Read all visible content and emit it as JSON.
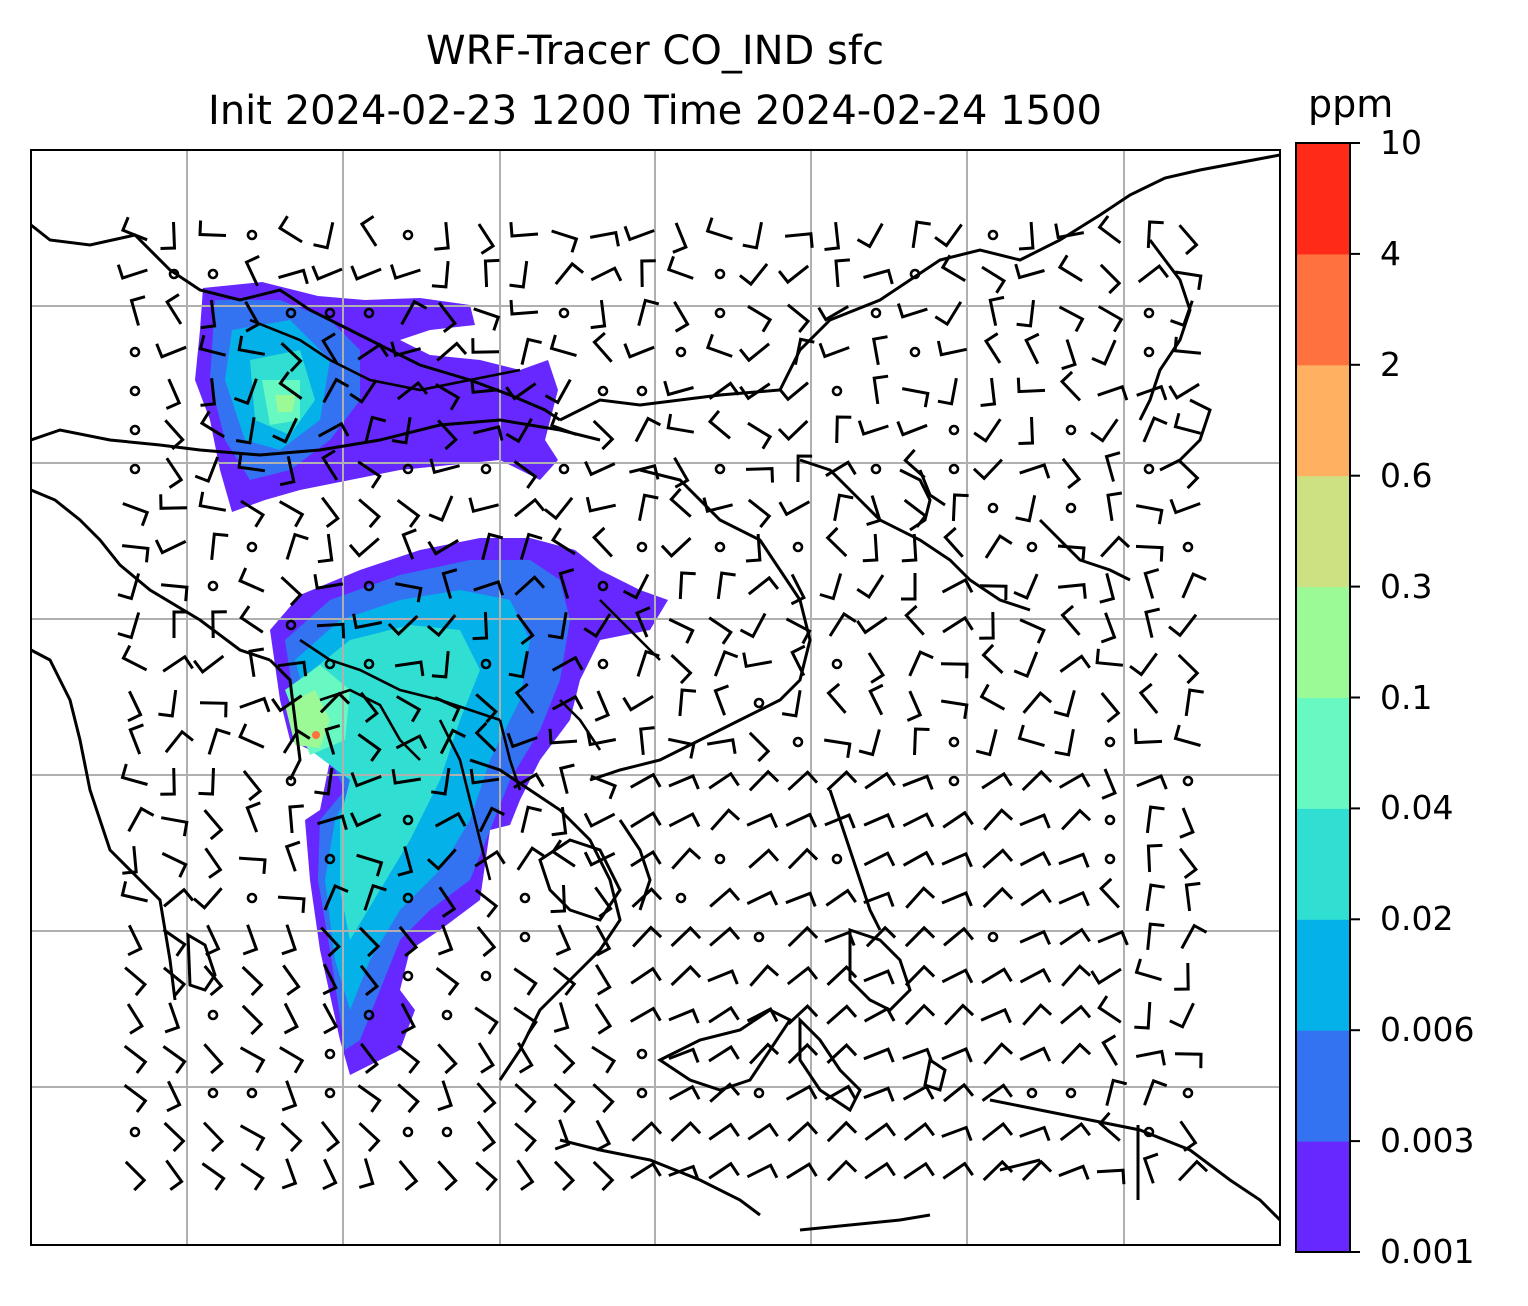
{
  "title": {
    "line1": "WRF-Tracer CO_IND sfc",
    "line2": "Init 2024-02-23 1200 Time 2024-02-24 1500"
  },
  "colorbar": {
    "unit": "ppm",
    "levels": [
      "0.001",
      "0.003",
      "0.006",
      "0.02",
      "0.04",
      "0.1",
      "0.3",
      "0.6",
      "2",
      "4",
      "10"
    ],
    "colors": [
      "#6628ff",
      "#3373f2",
      "#04b1e9",
      "#31dfd2",
      "#67f9c1",
      "#9bf996",
      "#cde182",
      "#ffb060",
      "#ff713e",
      "#ff2b18"
    ]
  },
  "map": {
    "gridlines": true,
    "features": [
      "coastlines",
      "borders",
      "wind-barbs",
      "calm-circles"
    ]
  }
}
